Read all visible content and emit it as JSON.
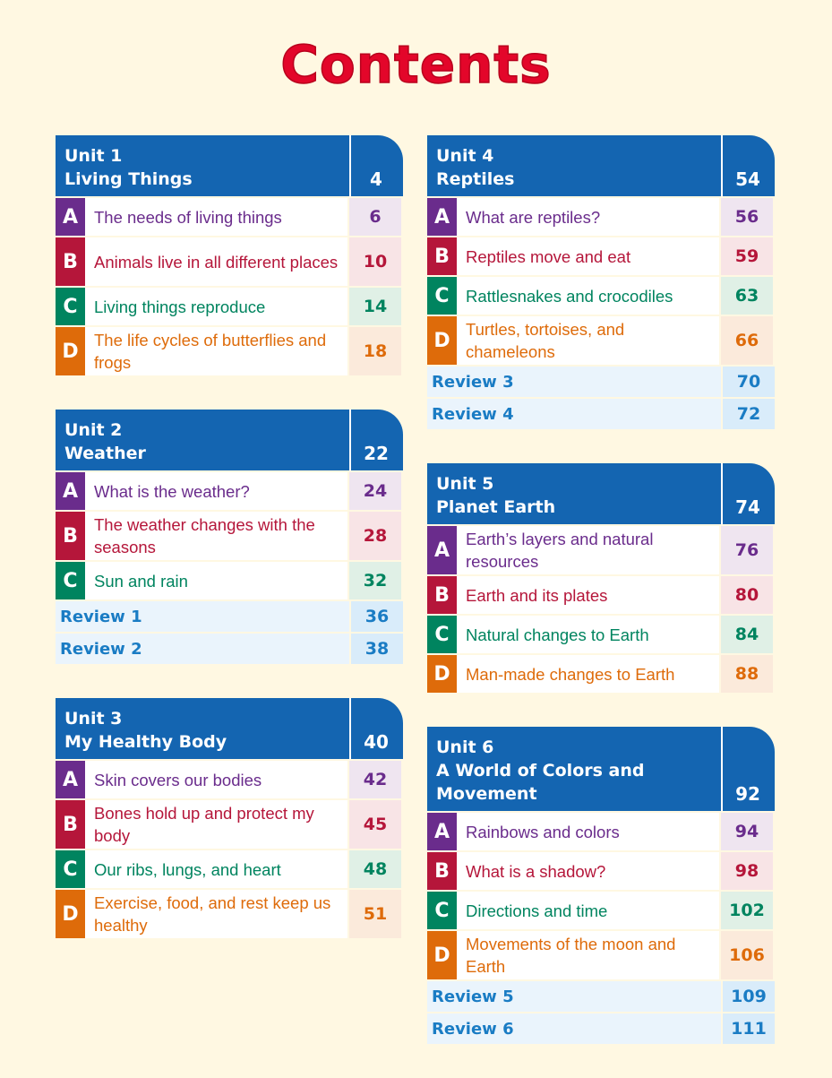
{
  "title": "Contents",
  "left_units": [
    {
      "unit": "Unit 1",
      "name": "Living Things",
      "page": "4",
      "lessons": [
        {
          "letter": "A",
          "title": "The needs of living things",
          "page": "6",
          "color": "purple",
          "lines": 1
        },
        {
          "letter": "B",
          "title": "Animals live in all different places",
          "page": "10",
          "color": "red",
          "lines": 2
        },
        {
          "letter": "C",
          "title": "Living things reproduce",
          "page": "14",
          "color": "green",
          "lines": 1
        },
        {
          "letter": "D",
          "title": "The life cycles of butterflies and frogs",
          "page": "18",
          "color": "orange",
          "lines": 2
        }
      ],
      "reviews": []
    },
    {
      "unit": "Unit 2",
      "name": "Weather",
      "page": "22",
      "lessons": [
        {
          "letter": "A",
          "title": "What is the weather?",
          "page": "24",
          "color": "purple",
          "lines": 1
        },
        {
          "letter": "B",
          "title": "The weather changes with the seasons",
          "page": "28",
          "color": "red",
          "lines": 2
        },
        {
          "letter": "C",
          "title": "Sun and rain",
          "page": "32",
          "color": "green",
          "lines": 1
        }
      ],
      "reviews": [
        {
          "title": "Review 1",
          "page": "36"
        },
        {
          "title": "Review 2",
          "page": "38"
        }
      ]
    },
    {
      "unit": "Unit 3",
      "name": "My Healthy Body",
      "page": "40",
      "lessons": [
        {
          "letter": "A",
          "title": "Skin covers our bodies",
          "page": "42",
          "color": "purple",
          "lines": 1
        },
        {
          "letter": "B",
          "title": "Bones hold up and protect my body",
          "page": "45",
          "color": "red",
          "lines": 2
        },
        {
          "letter": "C",
          "title": "Our ribs, lungs, and heart",
          "page": "48",
          "color": "green",
          "lines": 1
        },
        {
          "letter": "D",
          "title": "Exercise, food, and rest keep us healthy",
          "page": "51",
          "color": "orange",
          "lines": 2
        }
      ],
      "reviews": []
    }
  ],
  "right_units": [
    {
      "unit": "Unit 4",
      "name": "Reptiles",
      "page": "54",
      "lessons": [
        {
          "letter": "A",
          "title": "What are reptiles?",
          "page": "56",
          "color": "purple",
          "lines": 1
        },
        {
          "letter": "B",
          "title": "Reptiles move and eat",
          "page": "59",
          "color": "red",
          "lines": 1
        },
        {
          "letter": "C",
          "title": "Rattlesnakes and crocodiles",
          "page": "63",
          "color": "green",
          "lines": 1
        },
        {
          "letter": "D",
          "title": "Turtles, tortoises, and chameleons",
          "page": "66",
          "color": "orange",
          "lines": 2
        }
      ],
      "reviews": [
        {
          "title": "Review 3",
          "page": "70"
        },
        {
          "title": "Review 4",
          "page": "72"
        }
      ]
    },
    {
      "unit": "Unit 5",
      "name": "Planet Earth",
      "page": "74",
      "lessons": [
        {
          "letter": "A",
          "title": "Earth’s layers and natural resources",
          "page": "76",
          "color": "purple",
          "lines": 2
        },
        {
          "letter": "B",
          "title": "Earth and its plates",
          "page": "80",
          "color": "red",
          "lines": 1
        },
        {
          "letter": "C",
          "title": "Natural changes to Earth",
          "page": "84",
          "color": "green",
          "lines": 1
        },
        {
          "letter": "D",
          "title": "Man-made changes to Earth",
          "page": "88",
          "color": "orange",
          "lines": 1
        }
      ],
      "reviews": []
    },
    {
      "unit": "Unit 6",
      "name": "A World of Colors and Movement",
      "page": "92",
      "lessons": [
        {
          "letter": "A",
          "title": "Rainbows and colors",
          "page": "94",
          "color": "purple",
          "lines": 1
        },
        {
          "letter": "B",
          "title": "What is a shadow?",
          "page": "98",
          "color": "red",
          "lines": 1
        },
        {
          "letter": "C",
          "title": "Directions and time",
          "page": "102",
          "color": "green",
          "lines": 1
        },
        {
          "letter": "D",
          "title": "Movements of the moon and Earth",
          "page": "106",
          "color": "orange",
          "lines": 2
        }
      ],
      "reviews": [
        {
          "title": "Review 5",
          "page": "109"
        },
        {
          "title": "Review 6",
          "page": "111"
        }
      ]
    }
  ]
}
